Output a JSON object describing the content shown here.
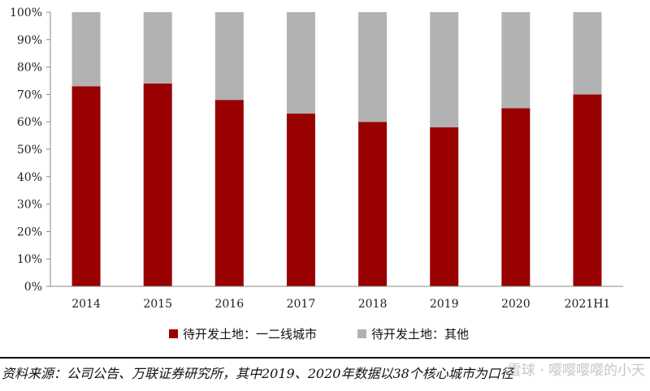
{
  "chart_data": {
    "type": "bar",
    "stacked": true,
    "categories": [
      "2014",
      "2015",
      "2016",
      "2017",
      "2018",
      "2019",
      "2020",
      "2021H1"
    ],
    "series": [
      {
        "name": "待开发土地：一二线城市",
        "color": "#990000",
        "values": [
          73,
          74,
          68,
          63,
          60,
          58,
          65,
          70
        ]
      },
      {
        "name": "待开发土地：其他",
        "color": "#b2b2b2",
        "values": [
          27,
          26,
          32,
          37,
          40,
          42,
          35,
          30
        ]
      }
    ],
    "ylim": [
      0,
      100
    ],
    "yticks": [
      "0%",
      "10%",
      "20%",
      "30%",
      "40%",
      "50%",
      "60%",
      "70%",
      "80%",
      "90%",
      "100%"
    ],
    "ylabel": "",
    "xlabel": "",
    "legend_position": "bottom",
    "grid": false
  },
  "source_note": "资料来源：公司公告、万联证券研究所，其中2019、2020年数据以38个核心城市为口径",
  "watermark": "雪球 · 嘤嘤嘤嘤的小天"
}
